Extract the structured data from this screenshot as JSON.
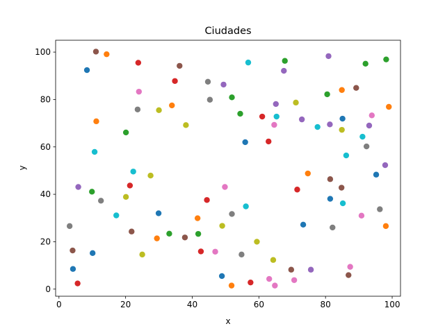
{
  "chart_data": {
    "type": "scatter",
    "title": "Ciudades",
    "xlabel": "x",
    "ylabel": "y",
    "xlim": [
      -1,
      102.5
    ],
    "ylim": [
      -3,
      105
    ],
    "xticks": [
      0,
      20,
      40,
      60,
      80,
      100
    ],
    "yticks": [
      0,
      20,
      40,
      60,
      80,
      100
    ],
    "grid": false,
    "palette": [
      "#1f77b4",
      "#ff7f0e",
      "#2ca02c",
      "#d62728",
      "#9467bd",
      "#8c564b",
      "#e377c2",
      "#7f7f7f",
      "#bcbd22",
      "#17becf"
    ],
    "points": [
      {
        "x": 3.2,
        "y": 26.6,
        "color": "#7f7f7f"
      },
      {
        "x": 4.1,
        "y": 16.3,
        "color": "#8c564b"
      },
      {
        "x": 4.2,
        "y": 8.5,
        "color": "#1f77b4"
      },
      {
        "x": 5.6,
        "y": 2.4,
        "color": "#d62728"
      },
      {
        "x": 5.8,
        "y": 43.1,
        "color": "#9467bd"
      },
      {
        "x": 8.4,
        "y": 92.4,
        "color": "#1f77b4"
      },
      {
        "x": 9.9,
        "y": 41.1,
        "color": "#2ca02c"
      },
      {
        "x": 10.1,
        "y": 15.2,
        "color": "#1f77b4"
      },
      {
        "x": 10.7,
        "y": 57.9,
        "color": "#17becf"
      },
      {
        "x": 11.1,
        "y": 100.2,
        "color": "#8c564b"
      },
      {
        "x": 11.2,
        "y": 70.8,
        "color": "#ff7f0e"
      },
      {
        "x": 12.6,
        "y": 37.3,
        "color": "#7f7f7f"
      },
      {
        "x": 14.3,
        "y": 99.1,
        "color": "#ff7f0e"
      },
      {
        "x": 17.2,
        "y": 31.1,
        "color": "#17becf"
      },
      {
        "x": 20.1,
        "y": 66.1,
        "color": "#2ca02c"
      },
      {
        "x": 20.1,
        "y": 38.9,
        "color": "#bcbd22"
      },
      {
        "x": 21.3,
        "y": 43.7,
        "color": "#d62728"
      },
      {
        "x": 21.8,
        "y": 24.3,
        "color": "#8c564b"
      },
      {
        "x": 22.3,
        "y": 49.6,
        "color": "#17becf"
      },
      {
        "x": 23.6,
        "y": 75.8,
        "color": "#7f7f7f"
      },
      {
        "x": 23.8,
        "y": 95.5,
        "color": "#d62728"
      },
      {
        "x": 24.0,
        "y": 83.3,
        "color": "#e377c2"
      },
      {
        "x": 25.0,
        "y": 14.6,
        "color": "#bcbd22"
      },
      {
        "x": 27.5,
        "y": 47.9,
        "color": "#bcbd22"
      },
      {
        "x": 29.4,
        "y": 21.4,
        "color": "#ff7f0e"
      },
      {
        "x": 29.9,
        "y": 32.0,
        "color": "#1f77b4"
      },
      {
        "x": 30.0,
        "y": 75.5,
        "color": "#bcbd22"
      },
      {
        "x": 33.1,
        "y": 23.4,
        "color": "#2ca02c"
      },
      {
        "x": 33.9,
        "y": 77.5,
        "color": "#ff7f0e"
      },
      {
        "x": 34.8,
        "y": 87.8,
        "color": "#d62728"
      },
      {
        "x": 36.2,
        "y": 94.2,
        "color": "#8c564b"
      },
      {
        "x": 37.8,
        "y": 21.8,
        "color": "#8c564b"
      },
      {
        "x": 38.1,
        "y": 69.2,
        "color": "#bcbd22"
      },
      {
        "x": 41.6,
        "y": 29.9,
        "color": "#ff7f0e"
      },
      {
        "x": 41.8,
        "y": 23.3,
        "color": "#2ca02c"
      },
      {
        "x": 42.6,
        "y": 15.9,
        "color": "#d62728"
      },
      {
        "x": 44.4,
        "y": 37.6,
        "color": "#d62728"
      },
      {
        "x": 44.7,
        "y": 87.5,
        "color": "#7f7f7f"
      },
      {
        "x": 45.3,
        "y": 79.9,
        "color": "#7f7f7f"
      },
      {
        "x": 46.9,
        "y": 15.8,
        "color": "#e377c2"
      },
      {
        "x": 48.9,
        "y": 5.5,
        "color": "#1f77b4"
      },
      {
        "x": 49.0,
        "y": 26.7,
        "color": "#bcbd22"
      },
      {
        "x": 49.4,
        "y": 86.3,
        "color": "#9467bd"
      },
      {
        "x": 49.8,
        "y": 43.1,
        "color": "#e377c2"
      },
      {
        "x": 51.8,
        "y": 1.5,
        "color": "#ff7f0e"
      },
      {
        "x": 51.9,
        "y": 31.7,
        "color": "#7f7f7f"
      },
      {
        "x": 51.9,
        "y": 80.9,
        "color": "#2ca02c"
      },
      {
        "x": 54.4,
        "y": 74.0,
        "color": "#2ca02c"
      },
      {
        "x": 54.8,
        "y": 14.6,
        "color": "#7f7f7f"
      },
      {
        "x": 55.9,
        "y": 62.0,
        "color": "#1f77b4"
      },
      {
        "x": 56.1,
        "y": 34.9,
        "color": "#17becf"
      },
      {
        "x": 56.8,
        "y": 95.6,
        "color": "#17becf"
      },
      {
        "x": 57.5,
        "y": 2.8,
        "color": "#d62728"
      },
      {
        "x": 59.4,
        "y": 20.0,
        "color": "#bcbd22"
      },
      {
        "x": 61.0,
        "y": 72.8,
        "color": "#d62728"
      },
      {
        "x": 62.9,
        "y": 62.3,
        "color": "#d62728"
      },
      {
        "x": 63.1,
        "y": 4.3,
        "color": "#e377c2"
      },
      {
        "x": 64.3,
        "y": 12.3,
        "color": "#bcbd22"
      },
      {
        "x": 64.6,
        "y": 69.3,
        "color": "#e377c2"
      },
      {
        "x": 64.8,
        "y": 1.5,
        "color": "#e377c2"
      },
      {
        "x": 65.1,
        "y": 78.1,
        "color": "#9467bd"
      },
      {
        "x": 65.3,
        "y": 72.8,
        "color": "#17becf"
      },
      {
        "x": 67.5,
        "y": 92.1,
        "color": "#9467bd"
      },
      {
        "x": 67.8,
        "y": 96.3,
        "color": "#2ca02c"
      },
      {
        "x": 69.7,
        "y": 8.2,
        "color": "#8c564b"
      },
      {
        "x": 70.6,
        "y": 3.8,
        "color": "#e377c2"
      },
      {
        "x": 71.1,
        "y": 78.7,
        "color": "#bcbd22"
      },
      {
        "x": 71.5,
        "y": 42.0,
        "color": "#d62728"
      },
      {
        "x": 72.9,
        "y": 71.6,
        "color": "#9467bd"
      },
      {
        "x": 73.3,
        "y": 27.2,
        "color": "#1f77b4"
      },
      {
        "x": 74.7,
        "y": 48.8,
        "color": "#ff7f0e"
      },
      {
        "x": 75.6,
        "y": 8.2,
        "color": "#9467bd"
      },
      {
        "x": 77.6,
        "y": 68.4,
        "color": "#17becf"
      },
      {
        "x": 80.5,
        "y": 82.2,
        "color": "#2ca02c"
      },
      {
        "x": 80.9,
        "y": 98.3,
        "color": "#9467bd"
      },
      {
        "x": 81.3,
        "y": 69.5,
        "color": "#9467bd"
      },
      {
        "x": 81.4,
        "y": 46.4,
        "color": "#8c564b"
      },
      {
        "x": 81.4,
        "y": 38.1,
        "color": "#1f77b4"
      },
      {
        "x": 82.1,
        "y": 26.0,
        "color": "#7f7f7f"
      },
      {
        "x": 84.8,
        "y": 42.8,
        "color": "#8c564b"
      },
      {
        "x": 84.9,
        "y": 67.2,
        "color": "#bcbd22"
      },
      {
        "x": 84.9,
        "y": 84.0,
        "color": "#ff7f0e"
      },
      {
        "x": 85.1,
        "y": 71.9,
        "color": "#1f77b4"
      },
      {
        "x": 85.2,
        "y": 36.2,
        "color": "#17becf"
      },
      {
        "x": 86.2,
        "y": 56.4,
        "color": "#17becf"
      },
      {
        "x": 86.9,
        "y": 5.9,
        "color": "#8c564b"
      },
      {
        "x": 87.4,
        "y": 9.4,
        "color": "#e377c2"
      },
      {
        "x": 89.2,
        "y": 84.9,
        "color": "#8c564b"
      },
      {
        "x": 90.8,
        "y": 31.0,
        "color": "#e377c2"
      },
      {
        "x": 91.1,
        "y": 64.3,
        "color": "#17becf"
      },
      {
        "x": 92.0,
        "y": 95.1,
        "color": "#2ca02c"
      },
      {
        "x": 92.3,
        "y": 60.2,
        "color": "#7f7f7f"
      },
      {
        "x": 93.1,
        "y": 69.0,
        "color": "#9467bd"
      },
      {
        "x": 93.9,
        "y": 73.3,
        "color": "#e377c2"
      },
      {
        "x": 95.2,
        "y": 48.3,
        "color": "#1f77b4"
      },
      {
        "x": 96.3,
        "y": 33.7,
        "color": "#7f7f7f"
      },
      {
        "x": 97.9,
        "y": 52.3,
        "color": "#9467bd"
      },
      {
        "x": 98.1,
        "y": 26.6,
        "color": "#ff7f0e"
      },
      {
        "x": 98.2,
        "y": 96.9,
        "color": "#2ca02c"
      },
      {
        "x": 99.0,
        "y": 76.9,
        "color": "#ff7f0e"
      }
    ]
  }
}
